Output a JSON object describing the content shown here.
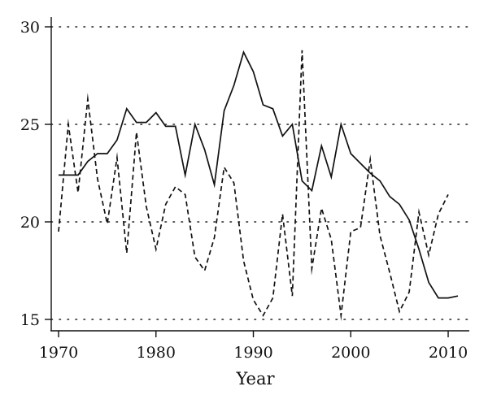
{
  "chart_data": {
    "type": "line",
    "title": "",
    "xlabel": "Year",
    "ylabel": "",
    "xlim": [
      1970,
      2011
    ],
    "ylim": [
      15,
      30
    ],
    "xticks": [
      1970,
      1980,
      1990,
      2000,
      2010
    ],
    "yticks": [
      15,
      20,
      25,
      30
    ],
    "grid": "horizontal dotted",
    "legend": "none",
    "series": [
      {
        "style": "solid",
        "color": "#111111",
        "x": [
          1970,
          1971,
          1972,
          1973,
          1974,
          1975,
          1976,
          1977,
          1978,
          1979,
          1980,
          1981,
          1982,
          1983,
          1984,
          1985,
          1986,
          1987,
          1988,
          1989,
          1990,
          1991,
          1992,
          1993,
          1994,
          1995,
          1996,
          1997,
          1998,
          1999,
          2000,
          2001,
          2002,
          2003,
          2004,
          2005,
          2006,
          2007,
          2008,
          2009,
          2010,
          2011
        ],
        "values": [
          22.4,
          22.4,
          22.4,
          23.1,
          23.5,
          23.5,
          24.2,
          25.8,
          25.1,
          25.1,
          25.6,
          24.9,
          24.9,
          22.4,
          25.0,
          23.7,
          21.9,
          25.7,
          27.0,
          28.7,
          27.7,
          26.0,
          25.8,
          24.4,
          25.0,
          22.1,
          21.6,
          23.9,
          22.3,
          25.0,
          23.5,
          23.0,
          22.5,
          22.1,
          21.3,
          20.9,
          20.1,
          18.6,
          16.9,
          16.1,
          16.1,
          16.2
        ]
      },
      {
        "style": "dashed",
        "color": "#111111",
        "x": [
          1970,
          1971,
          1972,
          1973,
          1974,
          1975,
          1976,
          1977,
          1978,
          1979,
          1980,
          1981,
          1982,
          1983,
          1984,
          1985,
          1986,
          1987,
          1988,
          1989,
          1990,
          1991,
          1992,
          1993,
          1994,
          1995,
          1996,
          1997,
          1998,
          1999,
          2000,
          2001,
          2002,
          2003,
          2004,
          2005,
          2006,
          2007,
          2008,
          2009,
          2010
        ],
        "values": [
          19.5,
          25.0,
          21.5,
          26.3,
          22.2,
          19.9,
          23.3,
          18.4,
          24.6,
          20.8,
          18.6,
          20.9,
          21.8,
          21.4,
          18.2,
          17.5,
          19.2,
          22.8,
          22.0,
          18.0,
          16.0,
          15.2,
          16.1,
          20.4,
          16.2,
          28.8,
          17.6,
          20.7,
          19.1,
          15.2,
          19.5,
          19.7,
          23.2,
          19.3,
          17.4,
          15.4,
          16.4,
          20.5,
          18.3,
          20.4,
          21.4
        ]
      }
    ]
  }
}
